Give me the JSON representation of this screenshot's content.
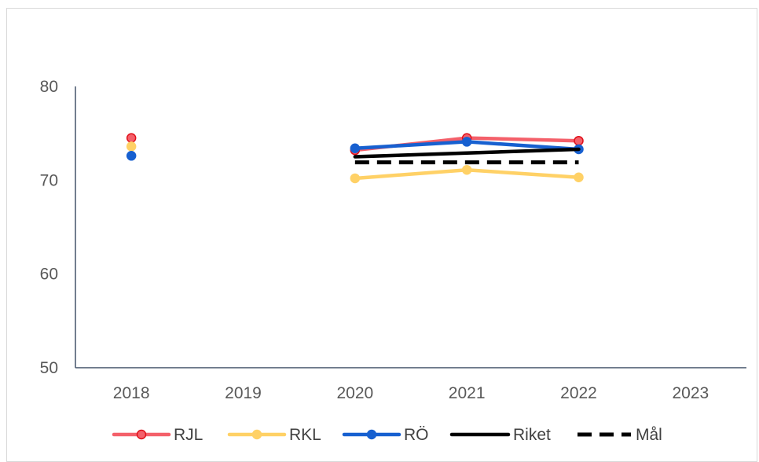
{
  "chart_data": {
    "type": "line",
    "title": "",
    "xlabel": "",
    "ylabel": "",
    "categories": [
      "2018",
      "2019",
      "2020",
      "2021",
      "2022",
      "2023"
    ],
    "ylim": [
      50,
      80
    ],
    "yticks": [
      50,
      60,
      70,
      80
    ],
    "grid": false,
    "legend_position": "bottom",
    "series": [
      {
        "name": "RJL",
        "color": "#f4606a",
        "marker_fill": "#f4606a",
        "marker_stroke": "#e0101a",
        "dashed": false,
        "markers": true,
        "values": [
          74.5,
          null,
          73.2,
          74.5,
          74.2,
          null
        ]
      },
      {
        "name": "RKL",
        "color": "#ffd166",
        "marker_fill": "#ffd166",
        "marker_stroke": "#ffd166",
        "dashed": false,
        "markers": true,
        "values": [
          73.6,
          null,
          70.2,
          71.1,
          70.3,
          null
        ]
      },
      {
        "name": "RÖ",
        "color": "#1760d0",
        "marker_fill": "#1760d0",
        "marker_stroke": "#1760d0",
        "dashed": false,
        "markers": true,
        "values": [
          72.6,
          null,
          73.4,
          74.1,
          73.3,
          null
        ]
      },
      {
        "name": "Riket",
        "color": "#000000",
        "dashed": false,
        "markers": false,
        "values": [
          null,
          null,
          72.5,
          72.9,
          73.3,
          null
        ]
      },
      {
        "name": "Mål",
        "color": "#000000",
        "dashed": true,
        "markers": false,
        "values": [
          null,
          null,
          71.9,
          71.9,
          71.9,
          null
        ]
      }
    ]
  }
}
